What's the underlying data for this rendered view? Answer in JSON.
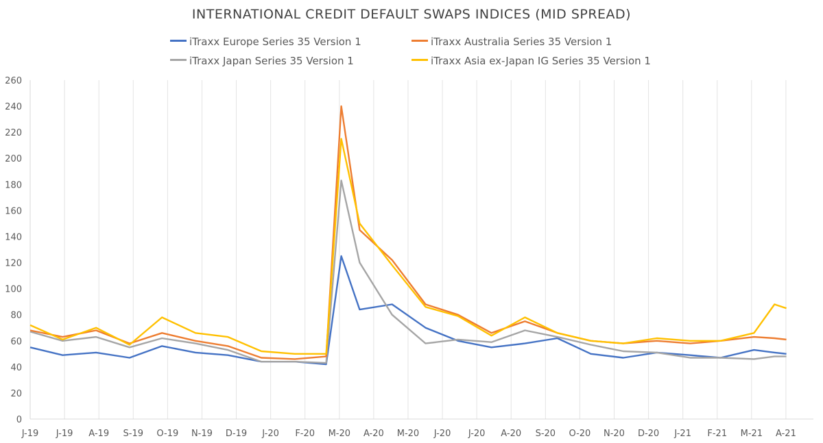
{
  "chart_data": {
    "type": "line",
    "title": "INTERNATIONAL CREDIT DEFAULT SWAPS INDICES (MID SPREAD)",
    "xlabel": "",
    "ylabel": "",
    "ylim": [
      0,
      260
    ],
    "yticks": [
      0,
      20,
      40,
      60,
      80,
      100,
      120,
      140,
      160,
      180,
      200,
      220,
      240,
      260
    ],
    "xticks": [
      "J-19",
      "J-19",
      "A-19",
      "S-19",
      "O-19",
      "N-19",
      "D-19",
      "J-20",
      "F-20",
      "M-20",
      "A-20",
      "M-20",
      "J-20",
      "J-20",
      "A-20",
      "S-20",
      "O-20",
      "N-20",
      "D-20",
      "J-21",
      "F-21",
      "M-21",
      "A-21"
    ],
    "grid": "vertical",
    "legend_position": "top",
    "x": [
      "2019-06",
      "2019-07",
      "2019-08",
      "2019-09",
      "2019-10",
      "2019-11",
      "2019-12",
      "2020-01",
      "2020-02",
      "2020-03",
      "2020-03-15",
      "2020-04",
      "2020-05",
      "2020-06",
      "2020-07",
      "2020-08",
      "2020-09",
      "2020-10",
      "2020-11",
      "2020-12",
      "2021-01",
      "2021-02",
      "2021-03",
      "2021-04",
      "2021-04-20",
      "2021-05"
    ],
    "series": [
      {
        "name": "iTraxx Europe Series 35 Version 1",
        "color": "#4472C4",
        "values": [
          55,
          49,
          51,
          47,
          56,
          51,
          49,
          44,
          44,
          42,
          125,
          84,
          88,
          70,
          60,
          55,
          58,
          62,
          50,
          47,
          51,
          49,
          47,
          53,
          51,
          50
        ]
      },
      {
        "name": "iTraxx Australia Series 35 Version 1",
        "color": "#ED7D31",
        "values": [
          68,
          63,
          68,
          58,
          66,
          60,
          56,
          47,
          46,
          48,
          240,
          145,
          122,
          88,
          80,
          66,
          75,
          66,
          60,
          58,
          60,
          58,
          60,
          63,
          62,
          61
        ]
      },
      {
        "name": "iTraxx Japan Series 35 Version 1",
        "color": "#A5A5A5",
        "values": [
          67,
          60,
          63,
          55,
          62,
          58,
          53,
          44,
          44,
          43,
          183,
          120,
          80,
          58,
          61,
          59,
          68,
          63,
          57,
          52,
          51,
          47,
          47,
          46,
          48,
          48
        ]
      },
      {
        "name": "iTraxx Asia ex-Japan IG Series 35 Version 1",
        "color": "#FFC000",
        "values": [
          72,
          61,
          70,
          57,
          78,
          66,
          63,
          52,
          50,
          50,
          215,
          150,
          118,
          86,
          79,
          64,
          78,
          66,
          60,
          58,
          62,
          60,
          60,
          66,
          88,
          85
        ]
      }
    ]
  }
}
